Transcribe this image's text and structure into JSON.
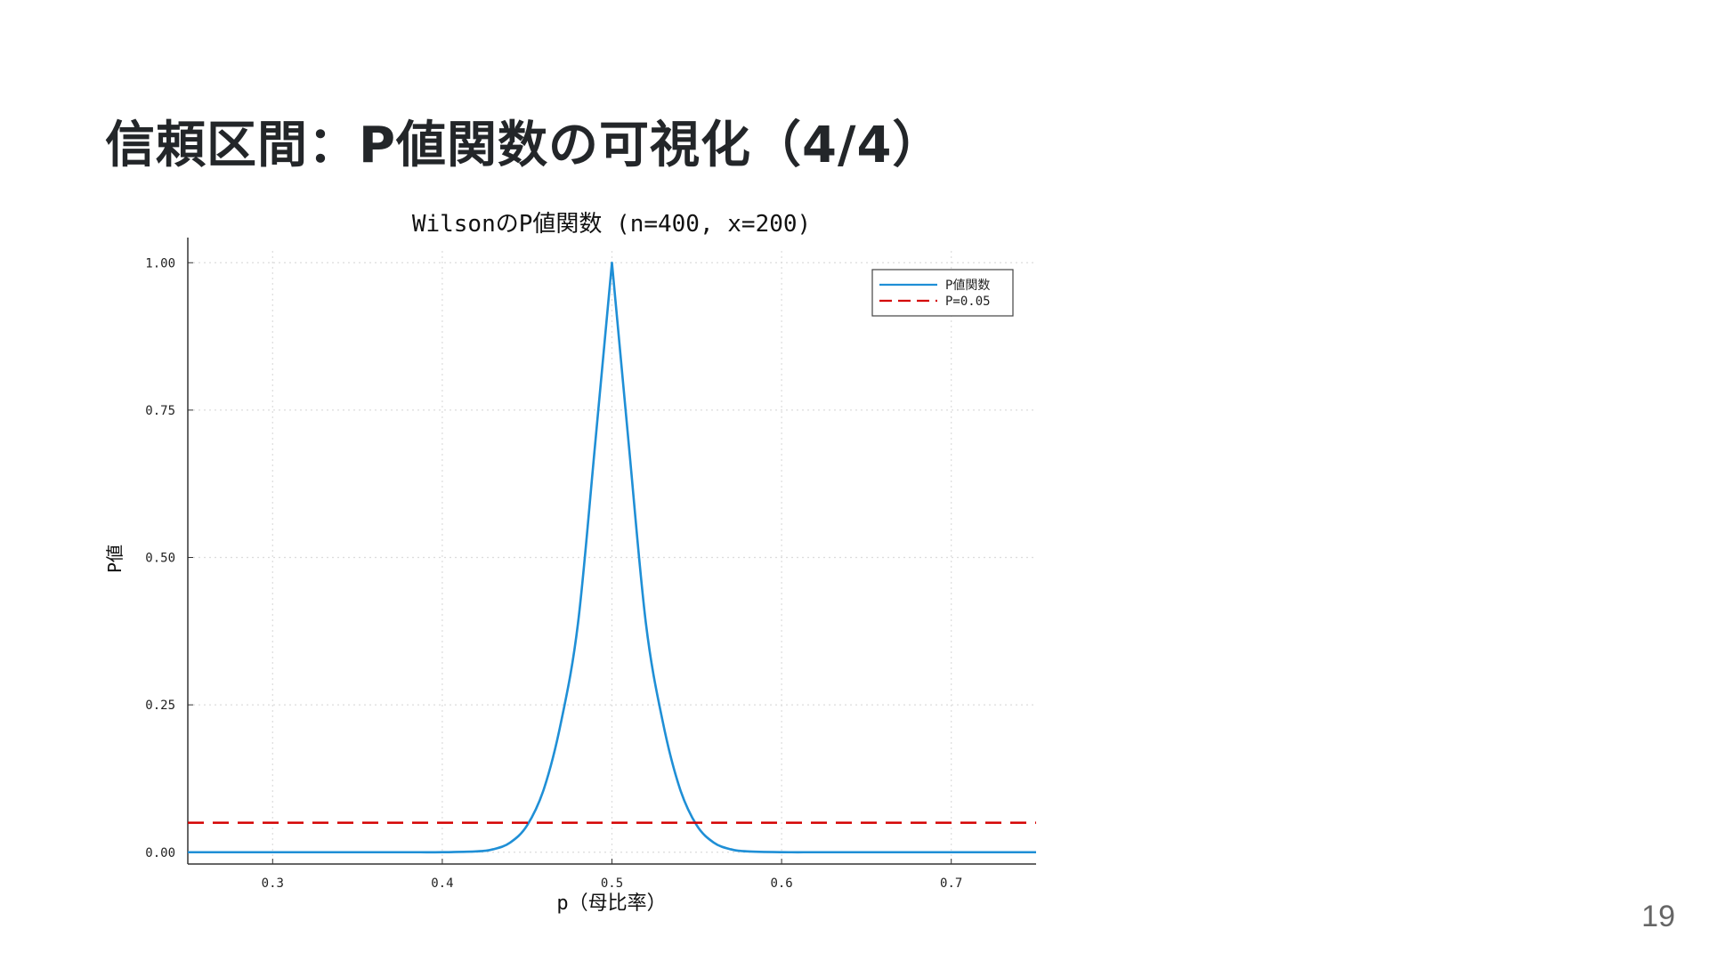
{
  "slide": {
    "title": "信頼区間：P値関数の可視化（4/4）",
    "page_number": "19"
  },
  "chart_data": {
    "type": "line",
    "title": "WilsonのP値関数 (n=400, x=200)",
    "xlabel": "p（母比率）",
    "ylabel": "P値",
    "xlim": [
      0.25,
      0.75
    ],
    "ylim": [
      -0.02,
      1.02
    ],
    "xticks": [
      0.3,
      0.4,
      0.5,
      0.6,
      0.7
    ],
    "xtick_labels": [
      "0.3",
      "0.4",
      "0.5",
      "0.6",
      "0.7"
    ],
    "yticks": [
      0.0,
      0.25,
      0.5,
      0.75,
      1.0
    ],
    "ytick_labels": [
      "0.00",
      "0.25",
      "0.50",
      "0.75",
      "1.00"
    ],
    "grid": true,
    "legend_position": "top-right",
    "series": [
      {
        "name": "P値関数",
        "style": "solid",
        "color": "#1f8fd6",
        "x": [
          0.25,
          0.3,
          0.35,
          0.38,
          0.4,
          0.42,
          0.43,
          0.44,
          0.45,
          0.46,
          0.47,
          0.48,
          0.49,
          0.5,
          0.51,
          0.52,
          0.53,
          0.54,
          0.55,
          0.56,
          0.57,
          0.58,
          0.6,
          0.62,
          0.65,
          0.7,
          0.75
        ],
        "y": [
          0.0,
          0.0,
          0.0,
          0.0,
          0.0001,
          0.0014,
          0.005,
          0.0164,
          0.0455,
          0.1083,
          0.2207,
          0.3886,
          0.6892,
          1.0,
          0.6892,
          0.3886,
          0.2207,
          0.1083,
          0.0455,
          0.0164,
          0.005,
          0.0014,
          0.0001,
          0.0,
          0.0,
          0.0,
          0.0
        ]
      },
      {
        "name": "P=0.05",
        "style": "dashed",
        "color": "#d40000",
        "x": [
          0.25,
          0.75
        ],
        "y": [
          0.05,
          0.05
        ]
      }
    ]
  }
}
